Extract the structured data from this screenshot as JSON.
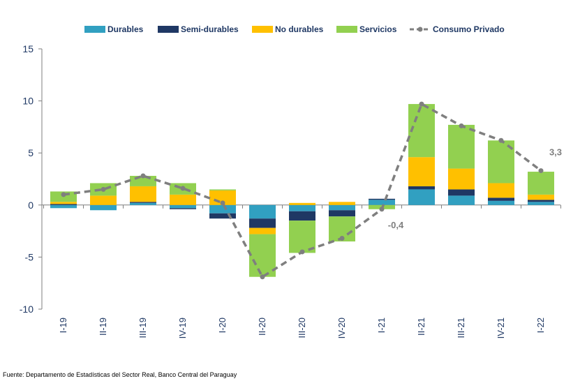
{
  "chart_data": {
    "type": "bar",
    "stacked": true,
    "categories": [
      "I-19",
      "II-19",
      "III-19",
      "IV-19",
      "I-20",
      "II-20",
      "III-20",
      "IV-20",
      "I-21",
      "II-21",
      "III-21",
      "IV-21",
      "I-22"
    ],
    "series": [
      {
        "name": "Durables",
        "color": "#31a0c1",
        "values": [
          -0.3,
          -0.5,
          0.2,
          -0.3,
          -0.8,
          -1.3,
          -0.6,
          -0.5,
          0.5,
          1.5,
          0.9,
          0.4,
          0.3
        ]
      },
      {
        "name": "Semi-durables",
        "color": "#1f3864",
        "values": [
          0.1,
          0.0,
          0.1,
          -0.1,
          -0.5,
          -0.9,
          -0.9,
          -0.6,
          0.1,
          0.3,
          0.6,
          0.3,
          0.2
        ]
      },
      {
        "name": "No durables",
        "color": "#ffc000",
        "values": [
          0.2,
          0.9,
          1.5,
          1.0,
          1.4,
          -0.6,
          0.2,
          0.3,
          0.0,
          2.8,
          2.0,
          1.4,
          0.5
        ]
      },
      {
        "name": "Servicios",
        "color": "#92d050",
        "values": [
          1.0,
          1.2,
          1.0,
          1.1,
          0.1,
          -4.1,
          -3.1,
          -2.4,
          -0.4,
          5.1,
          4.2,
          4.1,
          2.2
        ]
      }
    ],
    "line": {
      "name": "Consumo Privado",
      "color": "#7f7f7f",
      "values": [
        1.0,
        1.5,
        2.8,
        1.6,
        0.2,
        -6.9,
        -4.5,
        -3.2,
        -0.4,
        9.7,
        7.6,
        6.2,
        3.3
      ]
    },
    "annotations": [
      {
        "category": "I-21",
        "text": "-0,4"
      },
      {
        "category": "I-22",
        "text": "3,3"
      }
    ],
    "ylim": [
      -10,
      15
    ],
    "yticks": [
      -10,
      -5,
      0,
      5,
      10,
      15
    ],
    "title": "",
    "xlabel": "",
    "ylabel": "",
    "legend_position": "top",
    "source": "Fuente: Departamento de Estadísticas del Sector Real, Banco Central del Paraguay"
  }
}
